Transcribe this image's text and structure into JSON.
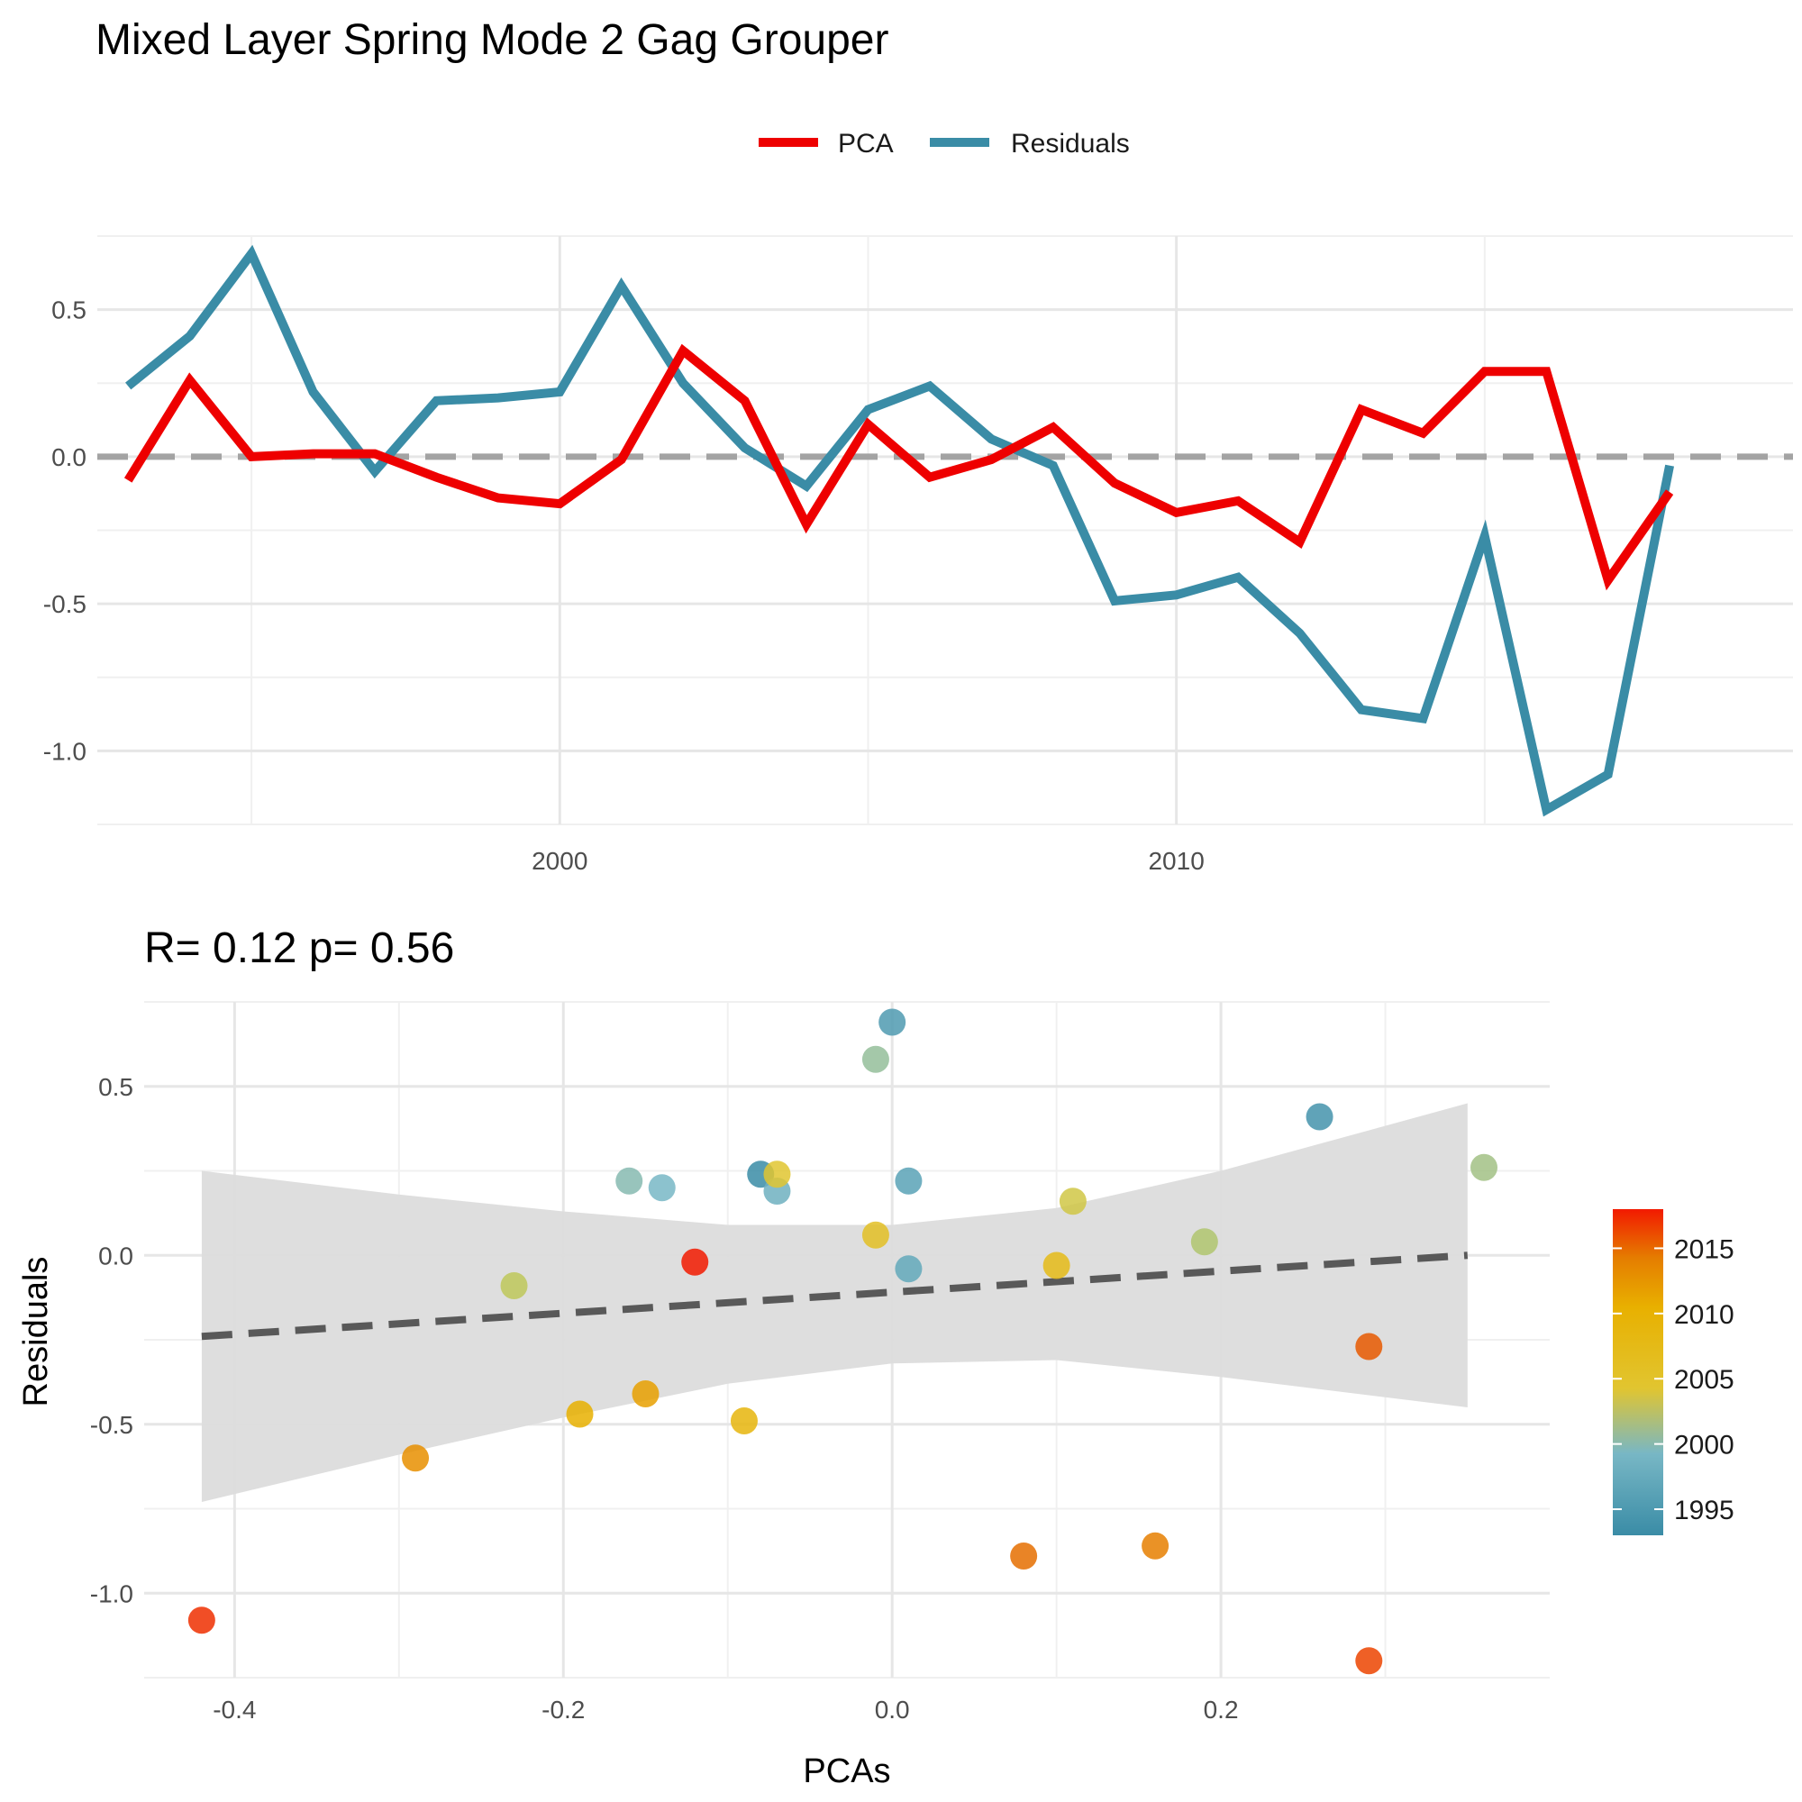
{
  "title": "Mixed Layer Spring Mode 2 Gag Grouper",
  "colors": {
    "pca": "#ee0000",
    "residuals": "#3a8ca6",
    "zero_line": "#a3a3a3",
    "fit_line": "#595959",
    "ribbon": "#dcdcdc"
  },
  "chart_data": [
    {
      "type": "line",
      "legend": [
        "PCA",
        "Residuals"
      ],
      "legend_position": "top-center",
      "x_ticks": [
        2000,
        2010
      ],
      "y_ticks": [
        0.5,
        0.0,
        -0.5,
        -1.0
      ],
      "y_tick_labels": [
        "0.5",
        "0.0",
        "-0.5",
        "-1.0"
      ],
      "xlim": [
        1992.5,
        2020
      ],
      "ylim": [
        -1.25,
        0.75
      ],
      "grid": true,
      "zero_line": 0,
      "x": [
        1993,
        1994,
        1995,
        1996,
        1997,
        1998,
        1999,
        2000,
        2001,
        2002,
        2003,
        2004,
        2005,
        2006,
        2007,
        2008,
        2009,
        2010,
        2011,
        2012,
        2013,
        2014,
        2015,
        2016,
        2017,
        2018
      ],
      "series": [
        {
          "name": "PCA",
          "values": [
            -0.08,
            0.26,
            0.0,
            0.01,
            0.01,
            -0.07,
            -0.14,
            -0.16,
            -0.01,
            0.36,
            0.19,
            -0.23,
            0.11,
            -0.07,
            -0.01,
            0.1,
            -0.09,
            -0.19,
            -0.15,
            -0.29,
            0.16,
            0.08,
            0.29,
            0.29,
            -0.42,
            -0.12
          ]
        },
        {
          "name": "Residuals",
          "values": [
            0.24,
            0.41,
            0.69,
            0.22,
            -0.05,
            0.19,
            0.2,
            0.22,
            0.58,
            0.25,
            0.03,
            -0.1,
            0.16,
            0.24,
            0.06,
            -0.03,
            -0.49,
            -0.47,
            -0.41,
            -0.6,
            -0.86,
            -0.89,
            -0.27,
            -1.2,
            -1.08,
            -0.03
          ]
        }
      ]
    },
    {
      "type": "scatter",
      "subtitle": "R= 0.12  p= 0.56",
      "xlabel": "PCAs",
      "ylabel": "Residuals",
      "x_ticks": [
        -0.4,
        -0.2,
        0.0,
        0.2
      ],
      "x_tick_labels": [
        "-0.4",
        "-0.2",
        "0.0",
        "0.2"
      ],
      "y_ticks": [
        0.5,
        0.0,
        -0.5,
        -1.0
      ],
      "y_tick_labels": [
        "0.5",
        "0.0",
        "-0.5",
        "-1.0"
      ],
      "xlim": [
        -0.455,
        0.4
      ],
      "ylim": [
        -1.25,
        0.75
      ],
      "grid": true,
      "colorbar": {
        "ticks": [
          2015,
          2010,
          2005,
          2000,
          1995
        ],
        "range": [
          1993,
          2018
        ],
        "position": "right"
      },
      "fit": {
        "x": [
          -0.42,
          0.35
        ],
        "y": [
          -0.24,
          0.0
        ],
        "ribbon_x": [
          -0.42,
          -0.3,
          -0.2,
          -0.1,
          0.0,
          0.1,
          0.2,
          0.35
        ],
        "ribbon_upper": [
          0.25,
          0.18,
          0.13,
          0.09,
          0.09,
          0.14,
          0.25,
          0.45
        ],
        "ribbon_lower": [
          -0.73,
          -0.59,
          -0.48,
          -0.38,
          -0.32,
          -0.31,
          -0.36,
          -0.45
        ]
      },
      "points": [
        {
          "x": -0.08,
          "y": 0.24,
          "year": 1993
        },
        {
          "x": 0.26,
          "y": 0.41,
          "year": 1994
        },
        {
          "x": 0.0,
          "y": 0.69,
          "year": 1995
        },
        {
          "x": 0.01,
          "y": 0.22,
          "year": 1996
        },
        {
          "x": 0.01,
          "y": -0.04,
          "year": 1997
        },
        {
          "x": -0.07,
          "y": 0.19,
          "year": 1998
        },
        {
          "x": -0.14,
          "y": 0.2,
          "year": 1999
        },
        {
          "x": -0.16,
          "y": 0.22,
          "year": 2000
        },
        {
          "x": -0.01,
          "y": 0.58,
          "year": 2001
        },
        {
          "x": 0.36,
          "y": 0.26,
          "year": 2002
        },
        {
          "x": 0.19,
          "y": 0.04,
          "year": 2003
        },
        {
          "x": -0.23,
          "y": -0.09,
          "year": 2004
        },
        {
          "x": 0.11,
          "y": 0.16,
          "year": 2005
        },
        {
          "x": -0.07,
          "y": 0.24,
          "year": 2006
        },
        {
          "x": -0.01,
          "y": 0.06,
          "year": 2007
        },
        {
          "x": 0.1,
          "y": -0.03,
          "year": 2008
        },
        {
          "x": -0.09,
          "y": -0.49,
          "year": 2009
        },
        {
          "x": -0.19,
          "y": -0.47,
          "year": 2010
        },
        {
          "x": -0.15,
          "y": -0.41,
          "year": 2011
        },
        {
          "x": -0.29,
          "y": -0.6,
          "year": 2012
        },
        {
          "x": 0.16,
          "y": -0.86,
          "year": 2013
        },
        {
          "x": 0.08,
          "y": -0.89,
          "year": 2014
        },
        {
          "x": 0.29,
          "y": -0.27,
          "year": 2015
        },
        {
          "x": 0.29,
          "y": -1.2,
          "year": 2016
        },
        {
          "x": -0.42,
          "y": -1.08,
          "year": 2017
        },
        {
          "x": -0.12,
          "y": -0.02,
          "year": 2018
        }
      ]
    }
  ]
}
